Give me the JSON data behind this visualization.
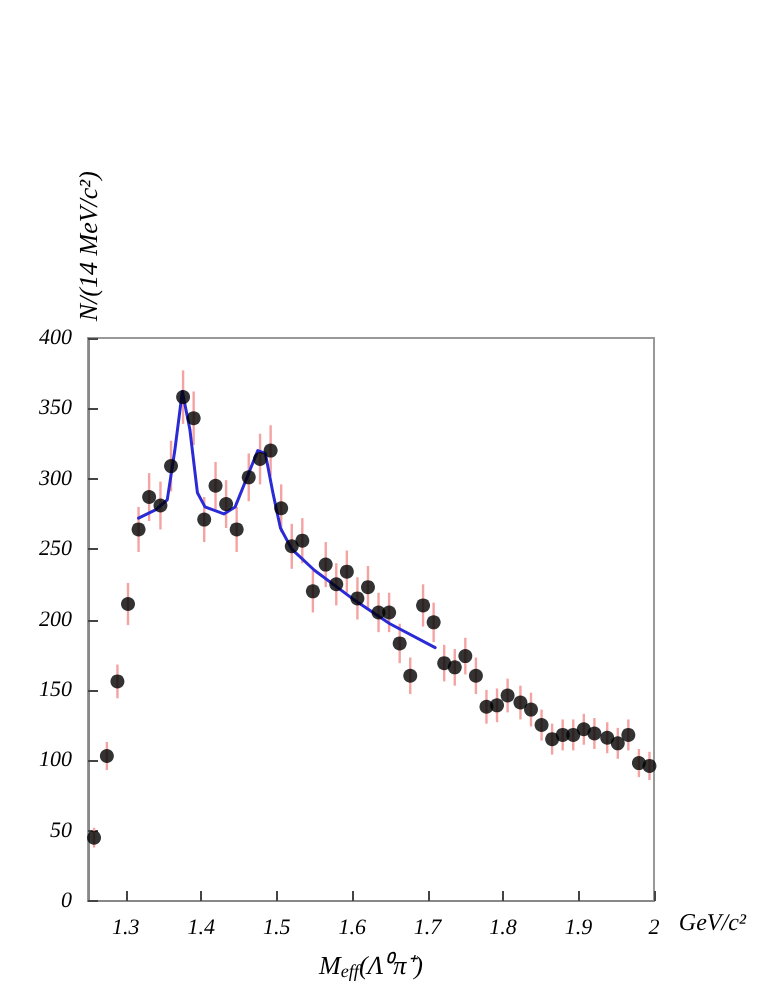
{
  "chart_data": {
    "type": "scatter",
    "xlabel": "M$_{eff}$(Λ⁰π⁺)",
    "ylabel": "N/(14 MeV/c²)",
    "annotations": [
      "GeV/c²"
    ],
    "xlim": [
      1.25,
      2.0
    ],
    "xticks": [
      1.3,
      1.4,
      1.5,
      1.6,
      1.7,
      1.8,
      1.9,
      2
    ],
    "ylim": [
      0,
      400
    ],
    "yticks": [
      0,
      50,
      100,
      150,
      200,
      250,
      300,
      350,
      400
    ],
    "grid": false,
    "marker": "circle",
    "series": [
      {
        "color": "#000000",
        "x": [
          1.258,
          1.275,
          1.289,
          1.303,
          1.317,
          1.331,
          1.346,
          1.36,
          1.376,
          1.39,
          1.404,
          1.419,
          1.433,
          1.447,
          1.463,
          1.478,
          1.492,
          1.506,
          1.52,
          1.534,
          1.548,
          1.565,
          1.579,
          1.593,
          1.607,
          1.621,
          1.635,
          1.649,
          1.663,
          1.677,
          1.694,
          1.708,
          1.722,
          1.736,
          1.75,
          1.764,
          1.778,
          1.792,
          1.806,
          1.823,
          1.837,
          1.851,
          1.865,
          1.879,
          1.893,
          1.907,
          1.921,
          1.938,
          1.952,
          1.966,
          1.98,
          1.994
        ],
        "values": [
          45,
          103,
          156,
          211,
          264,
          287,
          281,
          309,
          358,
          343,
          271,
          295,
          282,
          264,
          301,
          314,
          320,
          279,
          252,
          256,
          220,
          239,
          225,
          234,
          215,
          223,
          205,
          205,
          183,
          160,
          210,
          198,
          169,
          166,
          174,
          160,
          138,
          139,
          146,
          141,
          136,
          125,
          115,
          118,
          118,
          122,
          119,
          116,
          112,
          118,
          98,
          96
        ],
        "errors": [
          7,
          10,
          12,
          15,
          16,
          17,
          17,
          18,
          19,
          19,
          16,
          17,
          17,
          16,
          17,
          18,
          18,
          17,
          16,
          16,
          15,
          16,
          15,
          15,
          15,
          15,
          14,
          14,
          14,
          13,
          15,
          14,
          13,
          13,
          13,
          13,
          12,
          12,
          12,
          12,
          12,
          11,
          11,
          11,
          11,
          11,
          11,
          11,
          11,
          11,
          10,
          10
        ]
      },
      {
        "type": "line",
        "color": "#2b2bd6",
        "line_style": "solid",
        "marker": "none",
        "x": [
          1.317,
          1.34,
          1.355,
          1.365,
          1.375,
          1.385,
          1.395,
          1.405,
          1.43,
          1.445,
          1.46,
          1.475,
          1.485,
          1.495,
          1.505,
          1.52,
          1.55,
          1.6,
          1.65,
          1.71
        ],
        "values": [
          272,
          278,
          285,
          320,
          362,
          335,
          290,
          280,
          275,
          280,
          300,
          320,
          318,
          290,
          265,
          250,
          235,
          215,
          197,
          180
        ]
      }
    ]
  }
}
